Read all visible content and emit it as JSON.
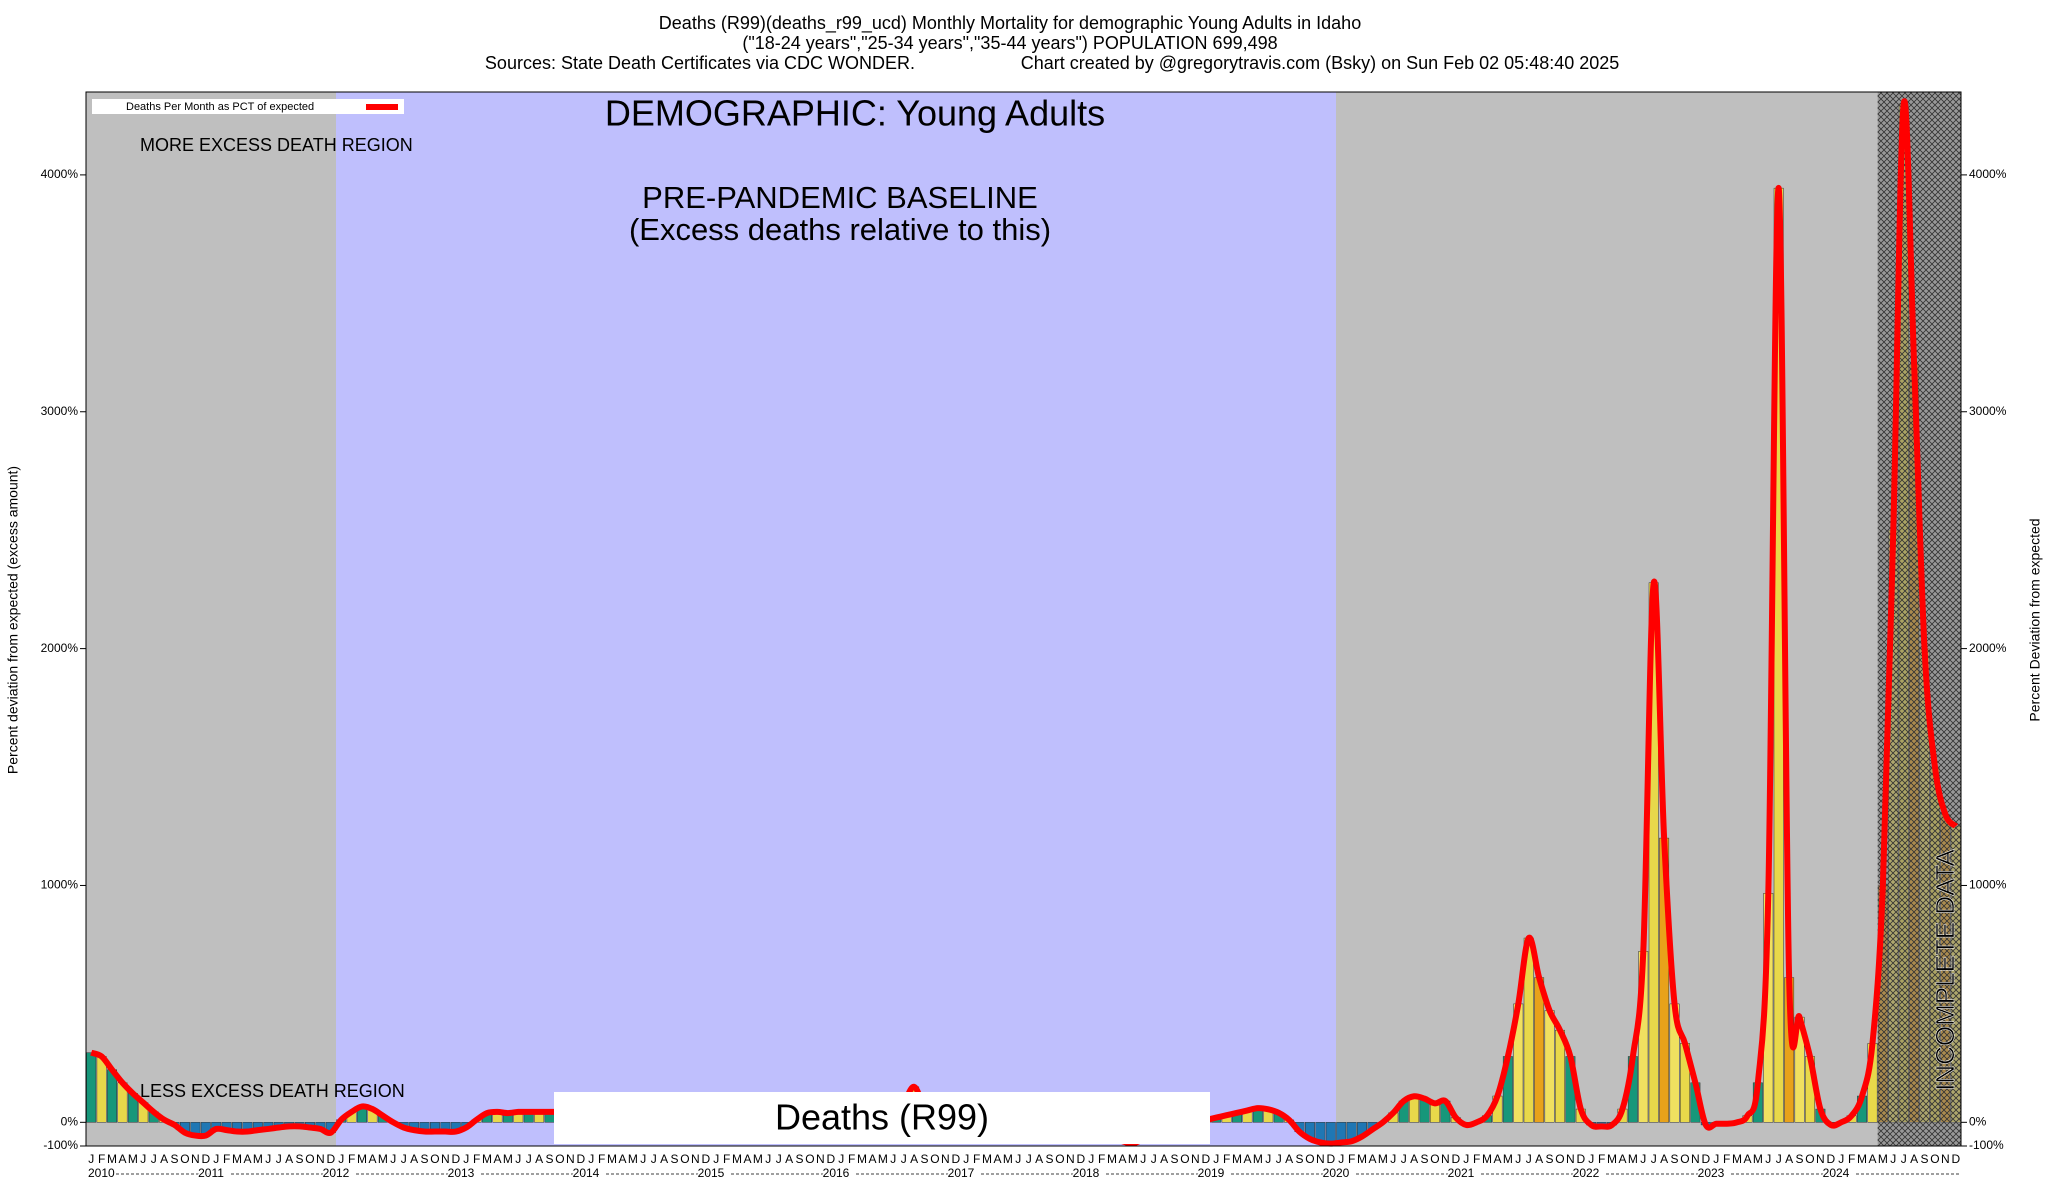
{
  "chart_data": {
    "type": "bar",
    "title": "Deaths (R99)(deaths_r99_ucd) Monthly Mortality for demographic Young Adults in Idaho",
    "subtitle": "(\"18-24 years\",\"25-34 years\",\"35-44 years\") POPULATION 699,498",
    "sources": "Sources: State Death Certificates via CDC WONDER.",
    "credit": "Chart created by @gregorytravis.com (Bsky) on Sun Feb 02 05:48:40 2025",
    "demographic": "DEMOGRAPHIC: Young Adults",
    "baseline_label": "PRE-PANDEMIC BASELINE",
    "baseline_note": "(Excess deaths relative to this)",
    "more_label": "MORE EXCESS DEATH REGION",
    "less_label": "LESS EXCESS DEATH REGION",
    "cause_label": "Deaths (R99)",
    "incomplete_label": "INCOMPLETE DATA",
    "y_label": "Percent deviation from expected (excess amount)",
    "y2_label": "Percent Deviation from expected",
    "months": [
      "J",
      "F",
      "M",
      "A",
      "M",
      "J",
      "J",
      "A",
      "S",
      "O",
      "N",
      "D"
    ],
    "years": [
      2010,
      2011,
      2012,
      2013,
      2014,
      2015,
      2016,
      2017,
      2018,
      2019,
      2020,
      2021,
      2022,
      2023,
      2024
    ],
    "series": [
      {
        "name": "Deaths Per Month as PCT of expected",
        "color": "#ff0000",
        "values": [
          294,
          278,
          222,
          167,
          122,
          83,
          44,
          11,
          -11,
          -44,
          -56,
          -56,
          -28,
          -33,
          -39,
          -39,
          -33,
          -28,
          -22,
          -17,
          -17,
          -22,
          -28,
          -44,
          11,
          44,
          67,
          56,
          28,
          0,
          -22,
          -33,
          -39,
          -39,
          -39,
          -39,
          -22,
          11,
          39,
          44,
          39,
          44,
          44,
          44,
          44,
          44,
          39,
          33,
          39,
          33,
          28,
          22,
          17,
          11,
          11,
          6,
          0,
          0,
          0,
          0,
          5,
          3,
          0,
          -2,
          0,
          2,
          4,
          3,
          0,
          -3,
          0,
          2,
          3,
          5,
          8,
          10,
          15,
          20,
          80,
          150,
          60,
          10,
          5,
          0,
          0,
          -5,
          -8,
          -5,
          0,
          3,
          5,
          3,
          0,
          -2,
          -5,
          -10,
          -20,
          -40,
          -60,
          -80,
          -89,
          -70,
          -40,
          -20,
          -5,
          0,
          5,
          10,
          20,
          30,
          40,
          50,
          60,
          55,
          40,
          10,
          -40,
          -70,
          -85,
          -90,
          -85,
          -80,
          -60,
          -30,
          0,
          40,
          90,
          110,
          100,
          80,
          90,
          20,
          -11,
          0,
          28,
          111,
          278,
          500,
          778,
          611,
          472,
          389,
          278,
          56,
          -11,
          -17,
          -11,
          56,
          278,
          722,
          2278,
          1200,
          500,
          333,
          167,
          -11,
          -6,
          -6,
          0,
          28,
          167,
          967,
          3944,
          611,
          444,
          278,
          56,
          -11,
          0,
          28,
          111,
          333,
          1000,
          2500,
          4300,
          3200,
          2000,
          1500,
          1300,
          1250
        ]
      }
    ],
    "ylim": [
      -100,
      4350
    ],
    "yticks": [
      {
        "value": -100,
        "label": "-100%"
      },
      {
        "value": 0,
        "label": "0%"
      },
      {
        "value": 1000,
        "label": "1000%"
      },
      {
        "value": 2000,
        "label": "2000%"
      },
      {
        "value": 3000,
        "label": "3000%"
      },
      {
        "value": 4000,
        "label": "4000%"
      }
    ]
  }
}
